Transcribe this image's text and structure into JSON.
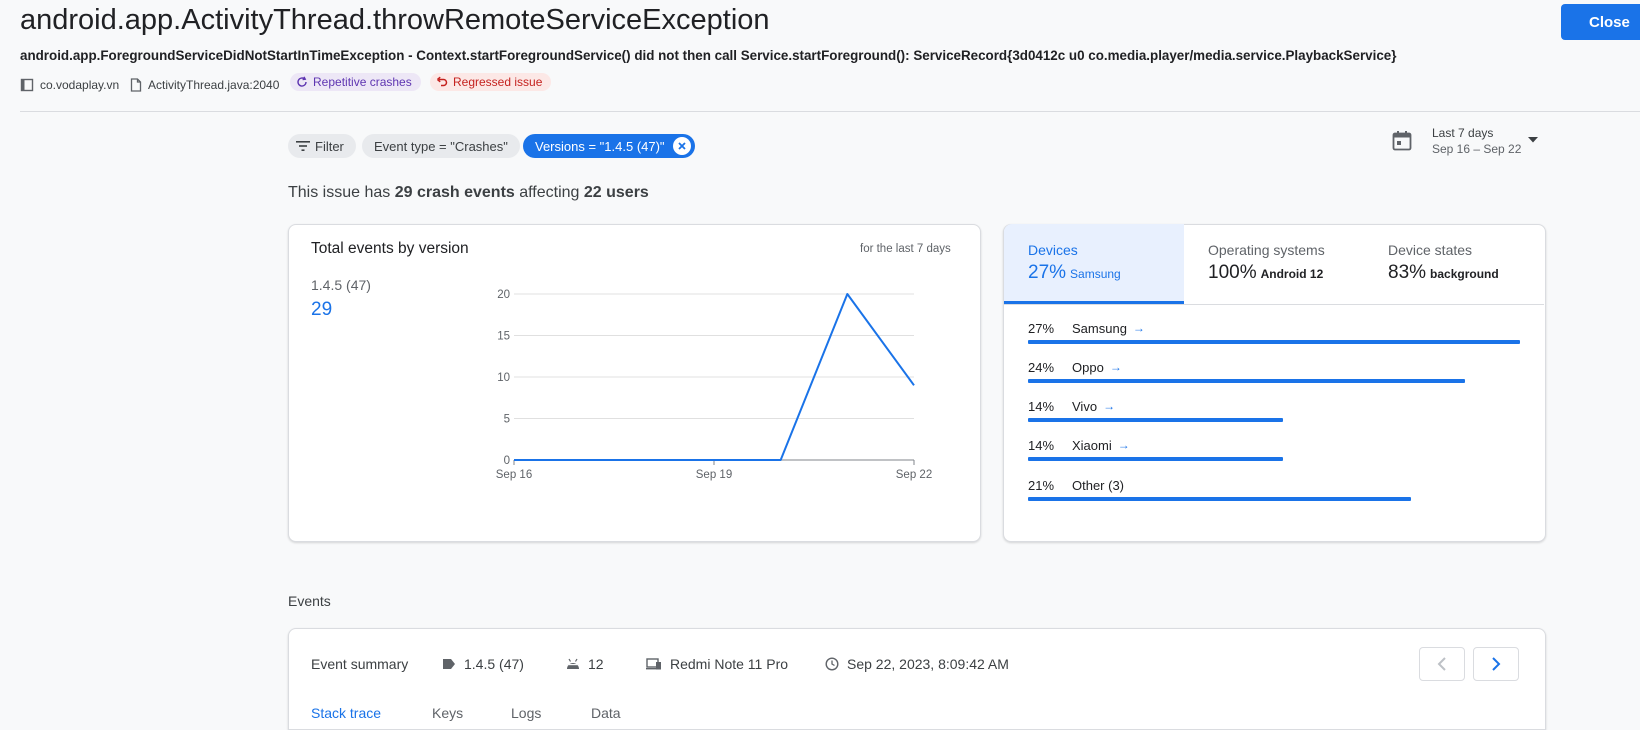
{
  "header": {
    "title": "android.app.ActivityThread.throwRemoteServiceException",
    "close_label": "Close",
    "subtitle": "android.app.ForegroundServiceDidNotStartInTimeException - Context.startForegroundService() did not then call Service.startForeground(): ServiceRecord{3d0412c u0 co.media.player/media.service.PlaybackService}",
    "package": "co.vodaplay.vn",
    "file": "ActivityThread.java:2040",
    "chip_repetitive": "Repetitive crashes",
    "chip_regressed": "Regressed issue"
  },
  "filters": {
    "filter_label": "Filter",
    "event_type": "Event type = \"Crashes\"",
    "versions": "Versions = \"1.4.5 (47)\"",
    "date_range_label": "Last 7 days",
    "date_range_sub": "Sep 16 – Sep 22"
  },
  "summary": {
    "prefix": "This issue has ",
    "events": "29 crash events",
    "middle": " affecting ",
    "users": "22 users"
  },
  "chart_card": {
    "title": "Total events by version",
    "period": "for the last 7 days",
    "version_label": "1.4.5 (47)",
    "version_count": "29"
  },
  "chart_data": {
    "type": "line",
    "title": "Total events by version",
    "x": [
      "Sep 16",
      "Sep 17",
      "Sep 18",
      "Sep 19",
      "Sep 20",
      "Sep 21",
      "Sep 22"
    ],
    "x_tick_labels": [
      "Sep 16",
      "Sep 19",
      "Sep 22"
    ],
    "series": [
      {
        "name": "1.4.5 (47)",
        "values": [
          0,
          0,
          0,
          0,
          0,
          20,
          9
        ]
      }
    ],
    "y_ticks": [
      "0",
      "5",
      "10",
      "15",
      "20"
    ],
    "ylim": [
      0,
      20
    ],
    "color": "#1a73e8",
    "grid": true
  },
  "devices_panel": {
    "tabs": [
      {
        "label": "Devices",
        "value": "27%",
        "sub": "Samsung"
      },
      {
        "label": "Operating systems",
        "value": "100%",
        "sub": "Android 12"
      },
      {
        "label": "Device states",
        "value": "83%",
        "sub": "background"
      }
    ],
    "rows": [
      {
        "pct": "27%",
        "name": "Samsung",
        "share": 27,
        "arrow": "→"
      },
      {
        "pct": "24%",
        "name": "Oppo",
        "share": 24,
        "arrow": "→"
      },
      {
        "pct": "14%",
        "name": "Vivo",
        "share": 14,
        "arrow": "→"
      },
      {
        "pct": "14%",
        "name": "Xiaomi",
        "share": 14,
        "arrow": "→"
      },
      {
        "pct": "21%",
        "name": "Other (3)",
        "share": 21
      }
    ]
  },
  "events": {
    "heading": "Events",
    "summary_label": "Event summary",
    "version": "1.4.5 (47)",
    "android_version": "12",
    "device": "Redmi Note 11 Pro",
    "timestamp": "Sep 22, 2023, 8:09:42 AM",
    "tabs": [
      "Stack trace",
      "Keys",
      "Logs",
      "Data"
    ]
  }
}
